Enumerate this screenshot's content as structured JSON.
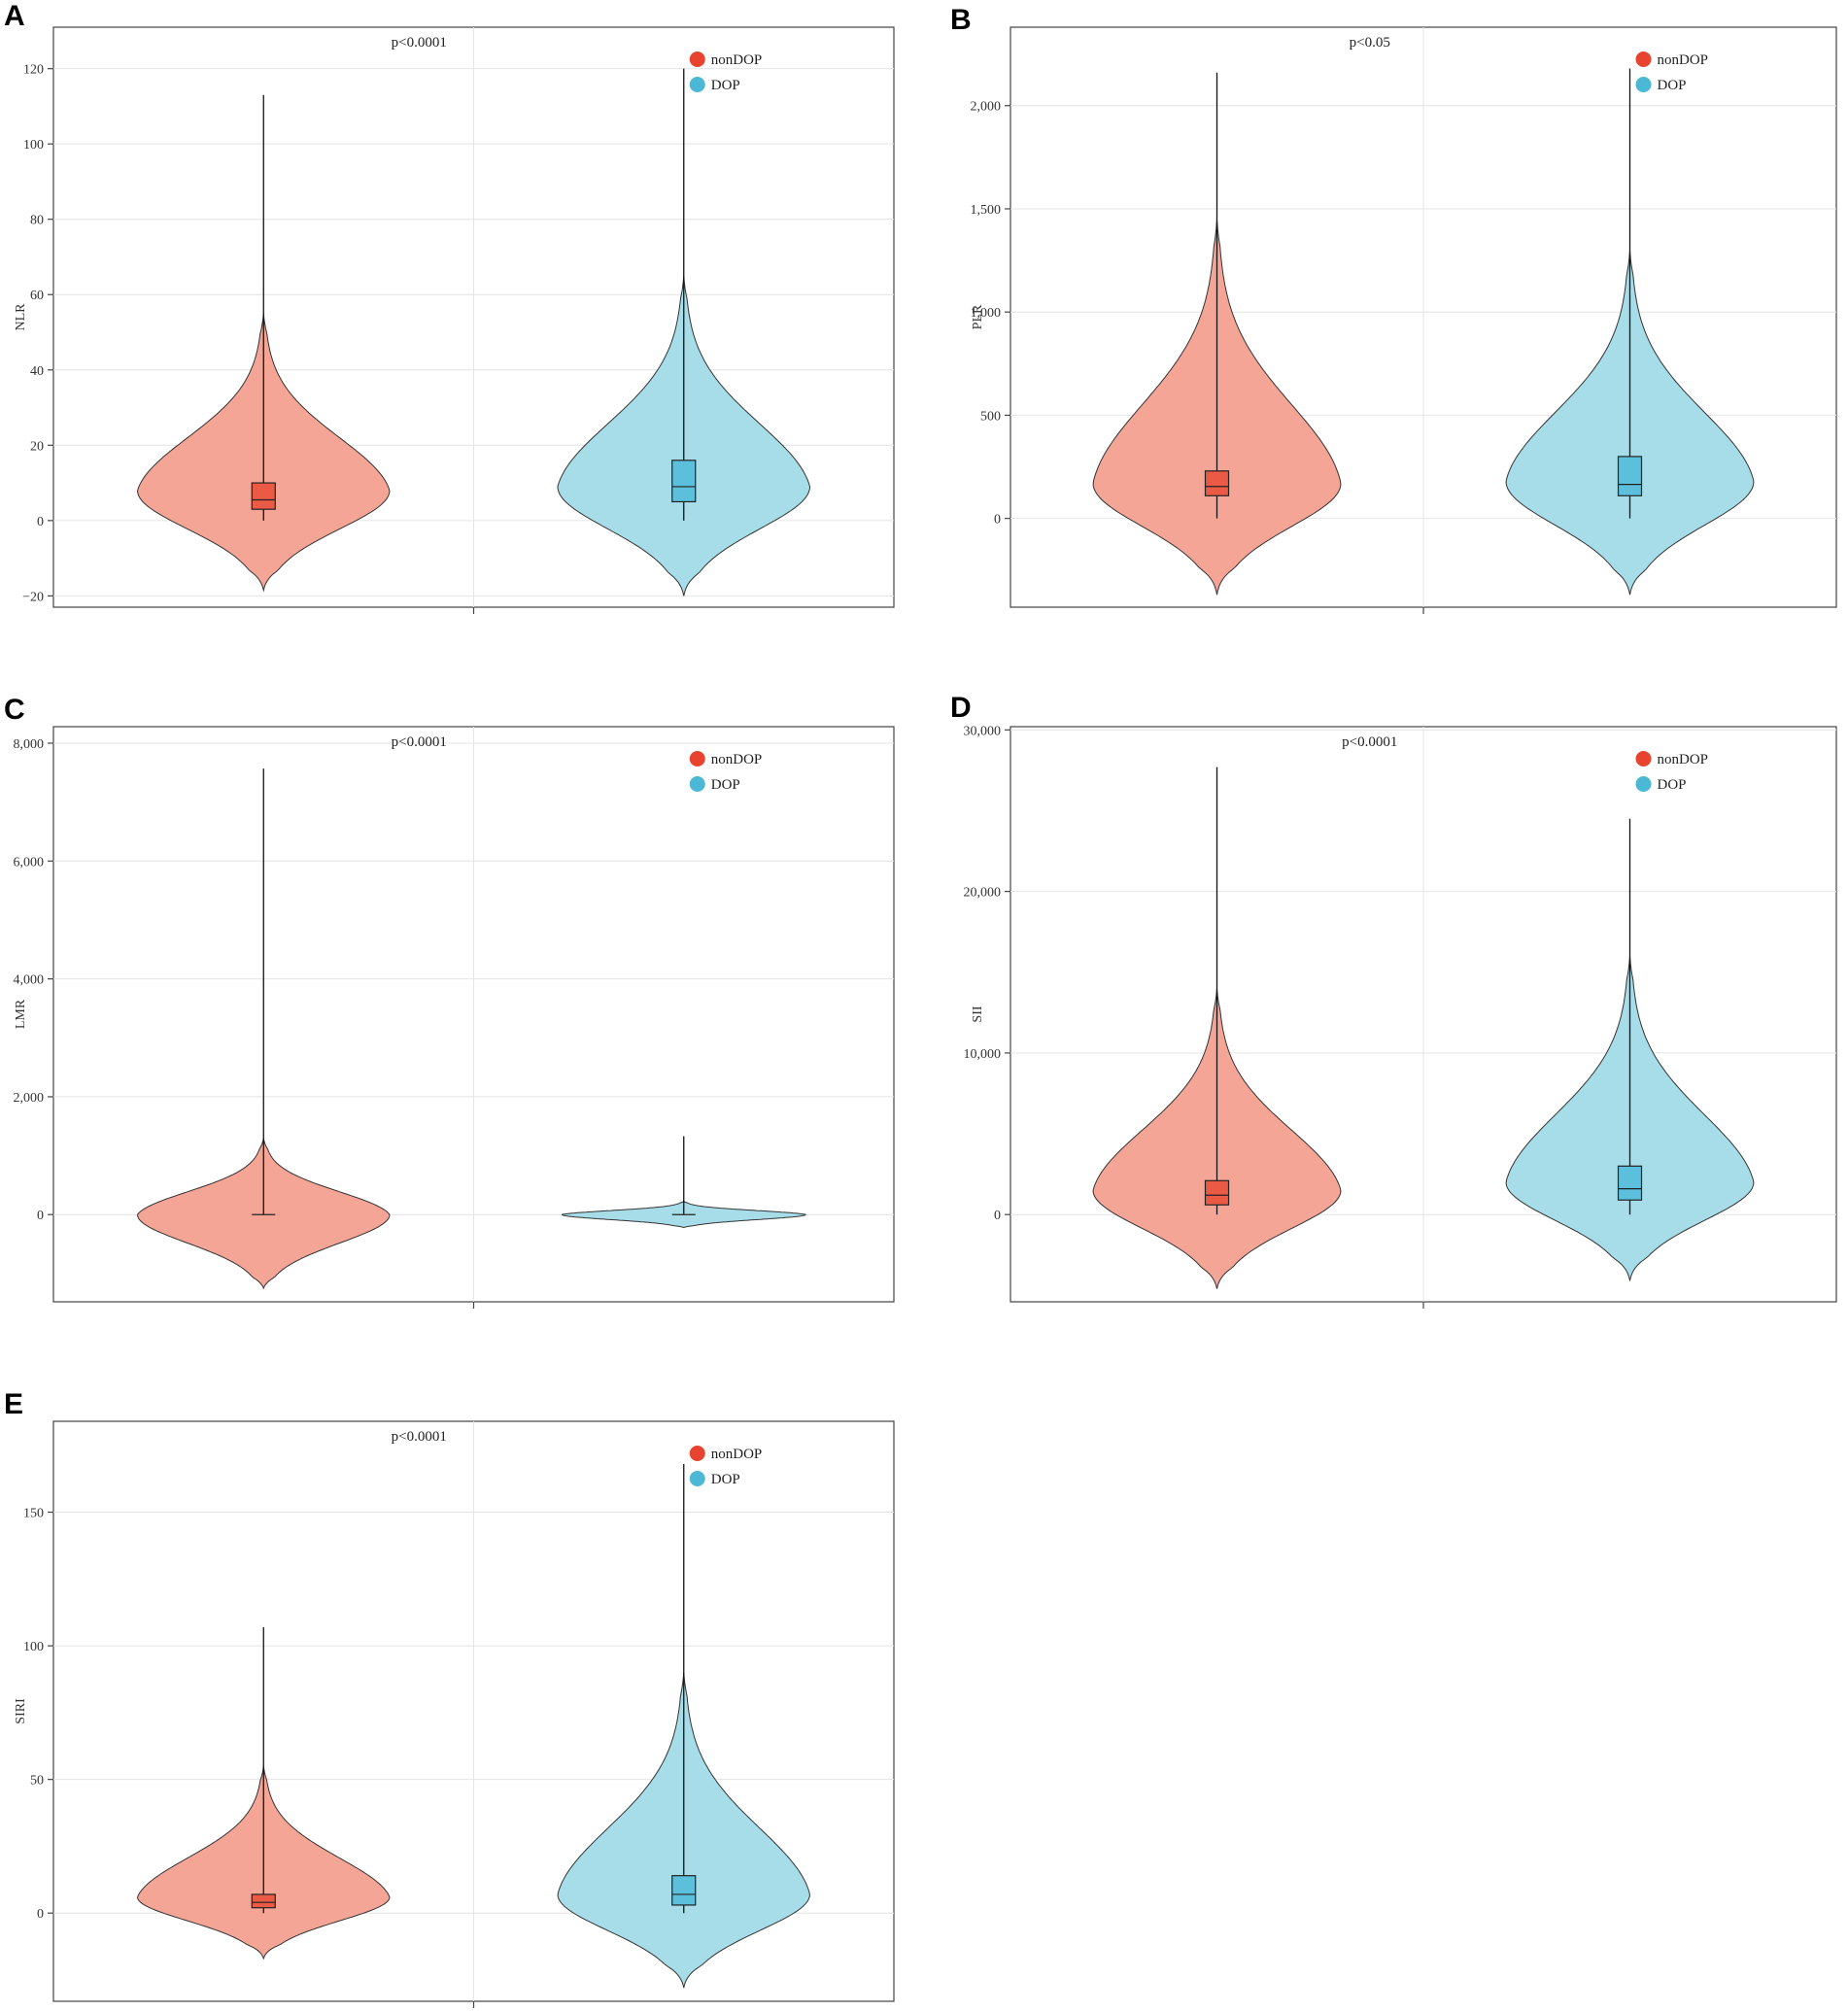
{
  "figure": {
    "colors": {
      "nonDOP_fill": "#f4a596",
      "DOP_fill": "#a6dde8",
      "nonDOP_legend": "#e8432e",
      "DOP_legend": "#4cb8d6",
      "nonDOP_box": "#ea5a45",
      "DOP_box": "#5cc0dc",
      "grid": "#e4e4e4",
      "frame": "#444444"
    },
    "legend": [
      "nonDOP",
      "DOP"
    ]
  },
  "chart_data": [
    {
      "panel": "A",
      "type": "violin",
      "ylabel": "NLR",
      "annotation": "p<0.0001",
      "ylim": [
        -23,
        131
      ],
      "yticks": [
        -20,
        0,
        20,
        40,
        60,
        80,
        100,
        120
      ],
      "ytick_labels": [
        "−20",
        "0",
        "20",
        "40",
        "60",
        "80",
        "100",
        "120"
      ],
      "series": [
        {
          "name": "nonDOP",
          "box": {
            "q1": 3,
            "median": 5.5,
            "q3": 10
          },
          "whisker": [
            0,
            113
          ],
          "density_range": [
            -18.5,
            55
          ],
          "peak": 8,
          "max_halfwidth": 0.6
        },
        {
          "name": "DOP",
          "box": {
            "q1": 5,
            "median": 9,
            "q3": 16
          },
          "whisker": [
            0,
            120
          ],
          "density_range": [
            -20,
            65
          ],
          "peak": 9,
          "max_halfwidth": 0.6
        }
      ]
    },
    {
      "panel": "B",
      "type": "violin",
      "ylabel": "PLR",
      "annotation": "p<0.05",
      "ylim": [
        -430,
        2380
      ],
      "yticks": [
        0,
        500,
        1000,
        1500,
        2000
      ],
      "ytick_labels": [
        "0",
        "500",
        "1,000",
        "1,500",
        "2,000"
      ],
      "series": [
        {
          "name": "nonDOP",
          "box": {
            "q1": 110,
            "median": 155,
            "q3": 230
          },
          "whisker": [
            0,
            2160
          ],
          "density_range": [
            -370,
            1450
          ],
          "peak": 170,
          "max_halfwidth": 0.6
        },
        {
          "name": "DOP",
          "box": {
            "q1": 110,
            "median": 165,
            "q3": 300
          },
          "whisker": [
            0,
            2180
          ],
          "density_range": [
            -370,
            1300
          ],
          "peak": 180,
          "max_halfwidth": 0.6
        }
      ]
    },
    {
      "panel": "C",
      "type": "violin",
      "ylabel": "LMR",
      "annotation": "p<0.0001",
      "ylim": [
        -1480,
        8280
      ],
      "yticks": [
        0,
        2000,
        4000,
        6000,
        8000
      ],
      "ytick_labels": [
        "0",
        "2,000",
        "4,000",
        "6,000",
        "8,000"
      ],
      "series": [
        {
          "name": "nonDOP",
          "box": {
            "q1": 0,
            "median": 0,
            "q3": 0
          },
          "whisker": [
            0,
            7570
          ],
          "density_range": [
            -1250,
            1300
          ],
          "peak": 0,
          "max_halfwidth": 0.6
        },
        {
          "name": "DOP",
          "box": {
            "q1": 0,
            "median": 0,
            "q3": 0
          },
          "whisker": [
            0,
            1330
          ],
          "density_range": [
            -220,
            230
          ],
          "peak": 0,
          "max_halfwidth": 0.58
        }
      ]
    },
    {
      "panel": "D",
      "type": "violin",
      "ylabel": "SII",
      "annotation": "p<0.0001",
      "ylim": [
        -5400,
        30200
      ],
      "yticks": [
        0,
        10000,
        20000,
        30000
      ],
      "ytick_labels": [
        "0",
        "10,000",
        "20,000",
        "30,000"
      ],
      "series": [
        {
          "name": "nonDOP",
          "box": {
            "q1": 600,
            "median": 1200,
            "q3": 2100
          },
          "whisker": [
            0,
            27700
          ],
          "density_range": [
            -4600,
            14000
          ],
          "peak": 1500,
          "max_halfwidth": 0.6
        },
        {
          "name": "DOP",
          "box": {
            "q1": 900,
            "median": 1600,
            "q3": 3000
          },
          "whisker": [
            0,
            24500
          ],
          "density_range": [
            -4100,
            16000
          ],
          "peak": 2000,
          "max_halfwidth": 0.6
        }
      ]
    },
    {
      "panel": "E",
      "type": "violin",
      "ylabel": "SIRI",
      "annotation": "p<0.0001",
      "ylim": [
        -33,
        184
      ],
      "yticks": [
        0,
        50,
        100,
        150
      ],
      "ytick_labels": [
        "0",
        "50",
        "100",
        "150"
      ],
      "series": [
        {
          "name": "nonDOP",
          "box": {
            "q1": 2,
            "median": 4,
            "q3": 7
          },
          "whisker": [
            0,
            107
          ],
          "density_range": [
            -17,
            55
          ],
          "peak": 6,
          "max_halfwidth": 0.6
        },
        {
          "name": "DOP",
          "box": {
            "q1": 3,
            "median": 7,
            "q3": 14
          },
          "whisker": [
            0,
            168
          ],
          "density_range": [
            -28,
            90
          ],
          "peak": 7,
          "max_halfwidth": 0.6
        }
      ]
    }
  ]
}
